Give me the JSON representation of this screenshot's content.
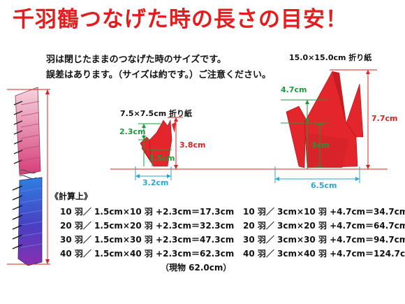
{
  "title": "千羽鶴つなげた時の長さの目安！",
  "notes": [
    "羽は閉じたままのつなげた時のサイズです。",
    "誤差はあります。（サイズは約です。）ご注意ください。"
  ],
  "small_crane": {
    "paper_label": "7.5×7.5cm 折り紙",
    "neck_height": "2.3cm",
    "body_height": "1.5cm",
    "total_height": "3.8cm",
    "width": "3.2cm"
  },
  "large_crane": {
    "paper_label": "15.0×15.0cm 折り紙",
    "neck_height": "4.7cm",
    "body_height": "3cm",
    "total_height": "7.7cm",
    "width": "6.5cm"
  },
  "calc": {
    "heading": "《計算上》",
    "left_rows": [
      "10 羽／ 1.5cm×10 羽 +2.3cm＝17.3cm",
      "20 羽／ 1.5cm×20 羽 +2.3cm＝32.3cm",
      "30 羽／ 1.5cm×30 羽 +2.3cm＝47.3cm",
      "40 羽／ 1.5cm×40 羽 +2.3cm＝62.3cm"
    ],
    "right_rows": [
      "10 羽／ 3cm×10 羽 +4.7cm＝34.7cm",
      "20 羽／ 3cm×20 羽 +4.7cm＝64.7cm",
      "30 羽／ 3cm×30 羽 +4.7cm＝94.7cm",
      "40 羽／ 3cm×40 羽 +4.7cm＝124.7cm"
    ],
    "actual_note": "（現物 62.0cm）"
  },
  "colors": {
    "title_red": "#e31d1d",
    "crane_red": "#e2262c",
    "green": "#1a9a3a",
    "cyan": "#2aa6cf",
    "line_red": "#e31d1d"
  }
}
